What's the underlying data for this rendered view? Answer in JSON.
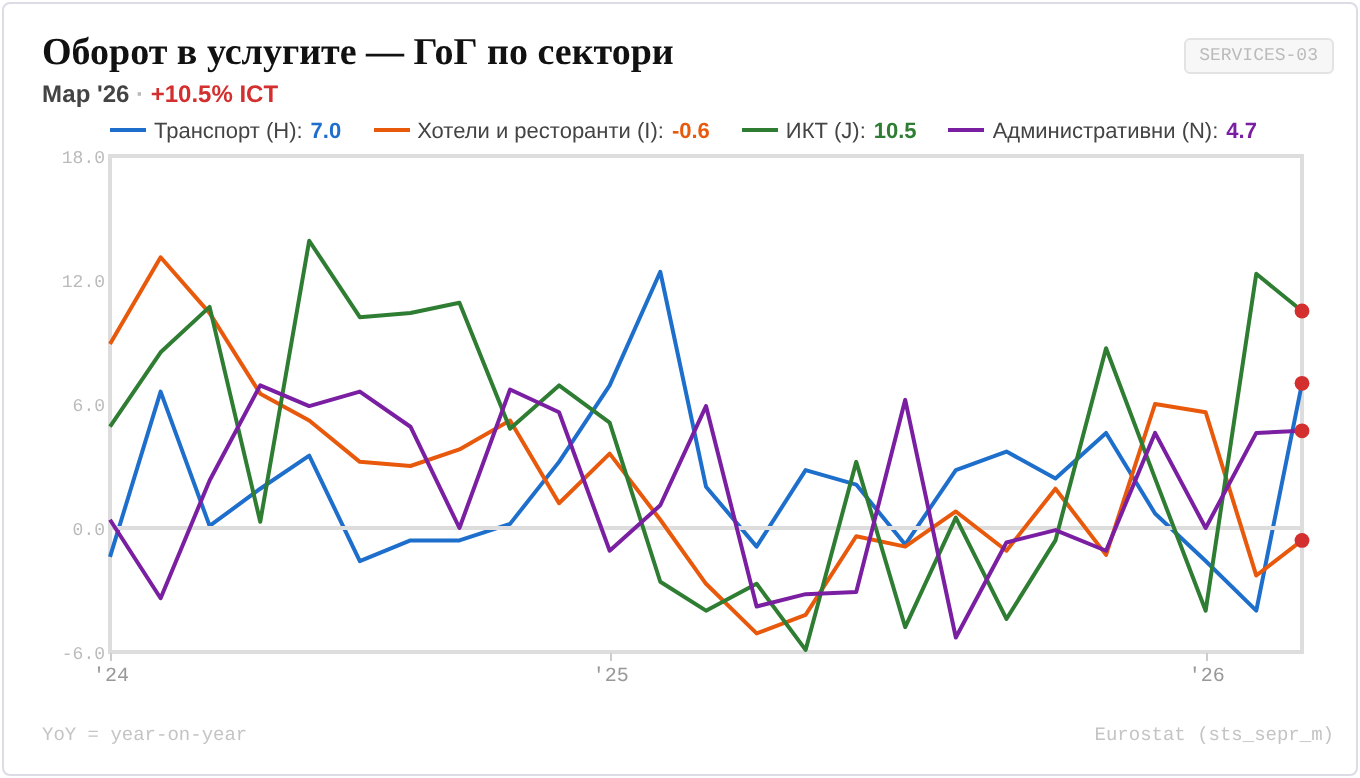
{
  "chart_data": {
    "type": "line",
    "title": "Оборот в услугите — ГоГ по сектори",
    "subtitle": "Мар '26 · +10.5% ICT",
    "annotations": [
      "SERVICES-03",
      "YoY = year-on-year",
      "Eurostat (sts_sepr_m)"
    ],
    "x": [
      "2024-03",
      "2024-04",
      "2024-05",
      "2024-06",
      "2024-07",
      "2024-08",
      "2024-09",
      "2024-10",
      "2024-11",
      "2024-12",
      "2025-01",
      "2025-02",
      "2025-03",
      "2025-04",
      "2025-05",
      "2025-06",
      "2025-07",
      "2025-08",
      "2025-09",
      "2025-10",
      "2025-11",
      "2025-12",
      "2026-01",
      "2026-02",
      "2026-03"
    ],
    "xlim": [
      "2024-03",
      "2026-03"
    ],
    "xticks": [
      {
        "value": "2024-03",
        "label": "'24"
      },
      {
        "value": "2025-01",
        "label": "'25"
      },
      {
        "value": "2026-01",
        "label": "'26"
      }
    ],
    "ylim": [
      -6,
      18
    ],
    "yticks": [
      {
        "value": -6,
        "label": "-6.0"
      },
      {
        "value": 0,
        "label": "0.0"
      },
      {
        "value": 6,
        "label": "6.0"
      },
      {
        "value": 12,
        "label": "12.0"
      },
      {
        "value": 18,
        "label": "18.0"
      }
    ],
    "series": [
      {
        "name": "Транспорт (H): 7.0",
        "color": "#1e6fcc",
        "values": [
          -1.4,
          6.6,
          0.1,
          1.9,
          3.5,
          -1.6,
          -0.6,
          -0.6,
          0.2,
          3.2,
          6.9,
          12.4,
          2.0,
          -0.9,
          2.8,
          2.1,
          -0.8,
          2.8,
          3.7,
          2.4,
          4.6,
          0.7,
          -1.6,
          -4.0,
          7.0
        ]
      },
      {
        "name": "Хотели и ресторанти (I): -0.6",
        "color": "#e8590c",
        "values": [
          8.9,
          13.1,
          10.4,
          6.5,
          5.2,
          3.2,
          3.0,
          3.8,
          5.2,
          1.2,
          3.6,
          0.4,
          -2.7,
          -5.1,
          -4.2,
          -0.4,
          -0.9,
          0.8,
          -1.1,
          1.9,
          -1.3,
          6.0,
          5.6,
          -2.3,
          -0.6
        ]
      },
      {
        "name": "ИКТ (J): 10.5",
        "color": "#2e7d32",
        "values": [
          4.9,
          8.5,
          10.7,
          0.3,
          13.9,
          10.2,
          10.4,
          10.9,
          4.8,
          6.9,
          5.1,
          -2.6,
          -4.0,
          -2.7,
          -5.9,
          3.2,
          -4.8,
          0.5,
          -4.4,
          -0.6,
          8.7,
          2.4,
          -4.0,
          12.3,
          10.5
        ]
      },
      {
        "name": "Административни (N): 4.7",
        "color": "#7b1fa2",
        "values": [
          0.4,
          -3.4,
          2.3,
          6.9,
          5.9,
          6.6,
          4.9,
          0.0,
          6.7,
          5.6,
          -1.1,
          1.1,
          5.9,
          -3.8,
          -3.2,
          -3.1,
          6.2,
          -5.3,
          -0.7,
          -0.1,
          -1.1,
          4.6,
          0.0,
          4.6,
          4.7
        ]
      },
      {
        "type": "scatter",
        "color": "#d32f2f",
        "x": [
          "2026-03",
          "2026-03",
          "2026-03",
          "2026-03"
        ],
        "values": [
          10.5,
          7.0,
          4.7,
          -0.6
        ]
      }
    ],
    "ref_lines": [
      {
        "axis": "y",
        "value": 0,
        "color": "#dddddd"
      }
    ],
    "legend": "top",
    "line_style": "solid"
  }
}
